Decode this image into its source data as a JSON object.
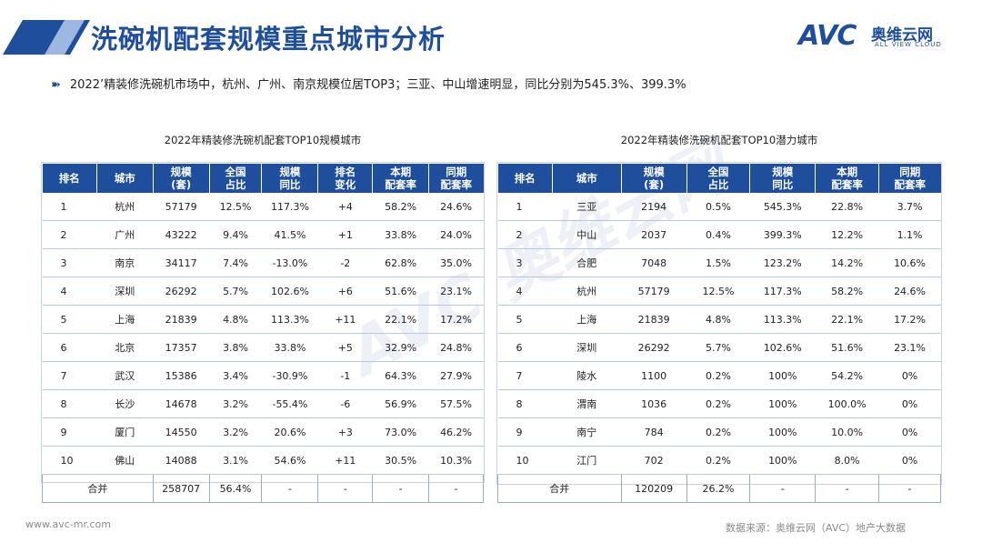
{
  "header": {
    "title": "洗碗机配套规模重点城市分析",
    "logo": {
      "mark": "AVC",
      "cn": "奥维云网",
      "en": "ALL VIEW CLOUD"
    }
  },
  "summary": "2022’精装修洗碗机市场中，杭州、广州、南京规模位居TOP3；三亚、中山增速明显，同比分别为545.3%、399.3%",
  "scale_table": {
    "caption": "2022年精装修洗碗机配套TOP10规模城市",
    "columns": [
      "排名",
      "城市",
      "规模\n(套)",
      "全国\n占比",
      "规模\n同比",
      "排名\n变化",
      "本期\n配套率",
      "同期\n配套率"
    ],
    "rows": [
      [
        "1",
        "杭州",
        "57179",
        "12.5%",
        "117.3%",
        "+4",
        "58.2%",
        "24.6%"
      ],
      [
        "2",
        "广州",
        "43222",
        "9.4%",
        "41.5%",
        "+1",
        "33.8%",
        "24.0%"
      ],
      [
        "3",
        "南京",
        "34117",
        "7.4%",
        "-13.0%",
        "-2",
        "62.8%",
        "35.0%"
      ],
      [
        "4",
        "深圳",
        "26292",
        "5.7%",
        "102.6%",
        "+6",
        "51.6%",
        "23.1%"
      ],
      [
        "5",
        "上海",
        "21839",
        "4.8%",
        "113.3%",
        "+11",
        "22.1%",
        "17.2%"
      ],
      [
        "6",
        "北京",
        "17357",
        "3.8%",
        "33.8%",
        "+5",
        "32.9%",
        "24.8%"
      ],
      [
        "7",
        "武汉",
        "15386",
        "3.4%",
        "-30.9%",
        "-1",
        "64.3%",
        "27.9%"
      ],
      [
        "8",
        "长沙",
        "14678",
        "3.2%",
        "-55.4%",
        "-6",
        "56.9%",
        "57.5%"
      ],
      [
        "9",
        "厦门",
        "14550",
        "3.2%",
        "20.6%",
        "+3",
        "73.0%",
        "46.2%"
      ],
      [
        "10",
        "佛山",
        "14088",
        "3.1%",
        "54.6%",
        "+11",
        "30.5%",
        "10.3%"
      ]
    ],
    "total": [
      "合并",
      "258707",
      "56.4%",
      "-",
      "-",
      "-",
      "-"
    ]
  },
  "potential_table": {
    "caption": "2022年精装修洗碗机配套TOP10潜力城市",
    "columns": [
      "排名",
      "城市",
      "规模\n(套)",
      "全国\n占比",
      "规模\n同比",
      "本期\n配套率",
      "同期\n配套率"
    ],
    "rows": [
      [
        "1",
        "三亚",
        "2194",
        "0.5%",
        "545.3%",
        "22.8%",
        "3.7%"
      ],
      [
        "2",
        "中山",
        "2037",
        "0.4%",
        "399.3%",
        "12.2%",
        "1.1%"
      ],
      [
        "3",
        "合肥",
        "7048",
        "1.5%",
        "123.2%",
        "14.2%",
        "10.6%"
      ],
      [
        "4",
        "杭州",
        "57179",
        "12.5%",
        "117.3%",
        "58.2%",
        "24.6%"
      ],
      [
        "5",
        "上海",
        "21839",
        "4.8%",
        "113.3%",
        "22.1%",
        "17.2%"
      ],
      [
        "6",
        "深圳",
        "26292",
        "5.7%",
        "102.6%",
        "51.6%",
        "23.1%"
      ],
      [
        "7",
        "陵水",
        "1100",
        "0.2%",
        "100%",
        "54.2%",
        "0%"
      ],
      [
        "8",
        "渭南",
        "1036",
        "0.2%",
        "100%",
        "100.0%",
        "0%"
      ],
      [
        "9",
        "南宁",
        "784",
        "0.2%",
        "100%",
        "10.0%",
        "0%"
      ],
      [
        "10",
        "江门",
        "702",
        "0.2%",
        "100%",
        "8.0%",
        "0%"
      ]
    ],
    "total": [
      "合并",
      "120209",
      "26.2%",
      "-",
      "-",
      "-"
    ]
  },
  "watermark": "AVC 奥维云网",
  "footer": {
    "website": "www.avc-mr.com",
    "source": "数据来源：奥维云网（AVC）地产大数据"
  },
  "colors": {
    "brand": "#1f4e9c",
    "header_bg": "#1f4e9c"
  }
}
